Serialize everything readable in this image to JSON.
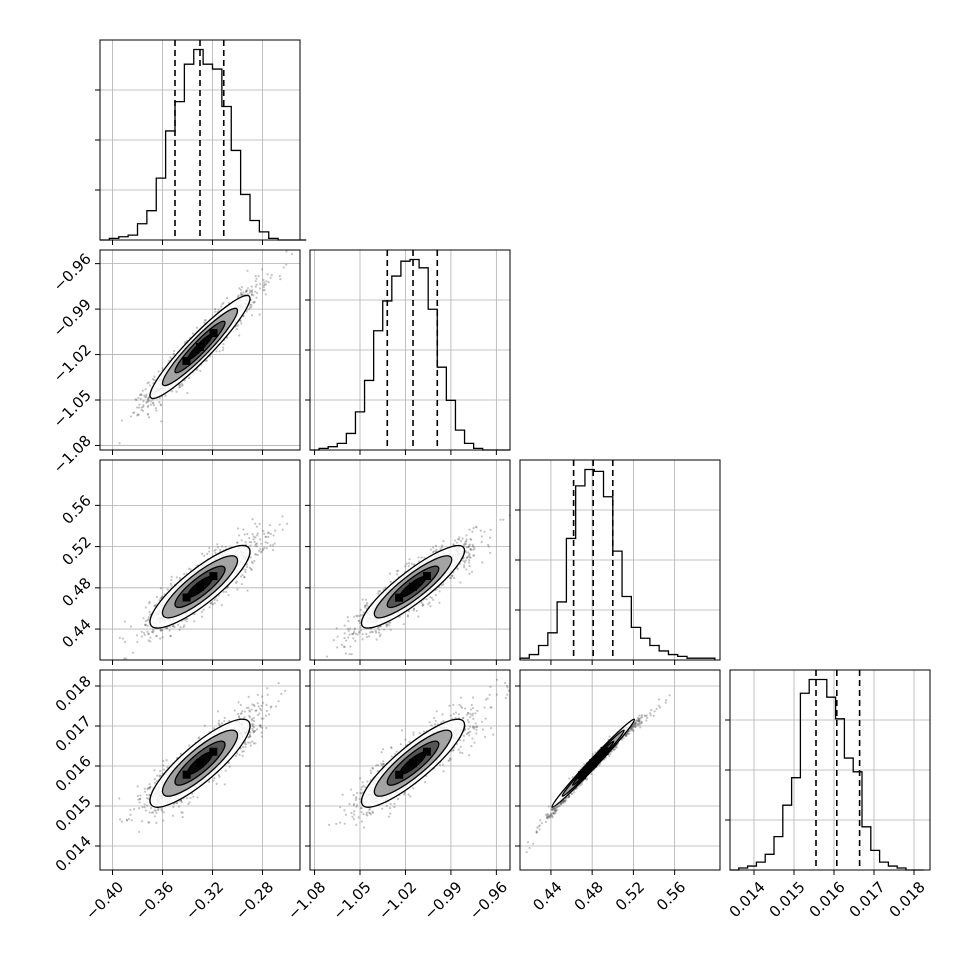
{
  "chart_data": {
    "type": "corner",
    "parameters": [
      {
        "range": [
          -0.41,
          -0.25
        ],
        "ticks": [
          -0.4,
          -0.36,
          -0.32,
          -0.28
        ],
        "tick_labels": [
          "−0.40",
          "−0.36",
          "−0.32",
          "−0.28"
        ],
        "quantiles": [
          -0.35,
          -0.33,
          -0.311
        ],
        "hist": {
          "bin_edges": [
            -0.41,
            -0.4025,
            -0.395,
            -0.3875,
            -0.38,
            -0.3725,
            -0.365,
            -0.3575,
            -0.35,
            -0.3425,
            -0.335,
            -0.3275,
            -0.32,
            -0.3125,
            -0.305,
            -0.2975,
            -0.29,
            -0.2825,
            -0.275,
            -0.2675,
            -0.26,
            -0.2525,
            -0.245
          ],
          "counts": [
            0,
            1,
            2,
            3,
            10,
            18,
            38,
            67,
            85,
            108,
            117,
            108,
            105,
            82,
            55,
            28,
            12,
            5,
            1,
            0,
            0,
            0
          ]
        }
      },
      {
        "range": [
          -1.083,
          -0.951
        ],
        "ticks": [
          -1.08,
          -1.05,
          -1.02,
          -0.99,
          -0.96
        ],
        "tick_labels": [
          "−1.08",
          "−1.05",
          "−1.02",
          "−0.99",
          "−0.96"
        ],
        "quantiles": [
          -1.032,
          -1.015,
          -0.999
        ],
        "hist": {
          "bin_edges": [
            -1.083,
            -1.077,
            -1.071,
            -1.065,
            -1.059,
            -1.053,
            -1.047,
            -1.041,
            -1.035,
            -1.029,
            -1.023,
            -1.017,
            -1.011,
            -1.005,
            -0.999,
            -0.993,
            -0.987,
            -0.981,
            -0.975,
            -0.969,
            -0.963,
            -0.957,
            -0.951
          ],
          "counts": [
            0,
            1,
            2,
            4,
            10,
            23,
            42,
            72,
            90,
            105,
            114,
            115,
            110,
            85,
            50,
            30,
            12,
            4,
            1,
            0,
            0,
            0
          ]
        }
      },
      {
        "range": [
          0.41,
          0.604
        ],
        "ticks": [
          0.44,
          0.48,
          0.52,
          0.56
        ],
        "tick_labels": [
          "0.44",
          "0.48",
          "0.52",
          "0.56"
        ],
        "quantiles": [
          0.462,
          0.481,
          0.5
        ],
        "hist": {
          "bin_edges": [
            0.41,
            0.419,
            0.428,
            0.437,
            0.446,
            0.455,
            0.464,
            0.473,
            0.482,
            0.491,
            0.5,
            0.509,
            0.518,
            0.527,
            0.536,
            0.545,
            0.554,
            0.563,
            0.572,
            0.581,
            0.59,
            0.599
          ],
          "counts": [
            1,
            3,
            8,
            15,
            32,
            67,
            96,
            105,
            104,
            90,
            60,
            35,
            18,
            12,
            8,
            5,
            3,
            2,
            1,
            1,
            1
          ]
        }
      },
      {
        "range": [
          0.0134,
          0.0184
        ],
        "ticks": [
          0.014,
          0.015,
          0.016,
          0.017,
          0.018
        ],
        "tick_labels": [
          "0.014",
          "0.015",
          "0.016",
          "0.017",
          "0.018"
        ],
        "quantiles": [
          0.01555,
          0.01607,
          0.01664
        ],
        "hist": {
          "bin_edges": [
            0.0134,
            0.01362,
            0.01384,
            0.01406,
            0.01428,
            0.0145,
            0.01472,
            0.01494,
            0.01516,
            0.01538,
            0.0156,
            0.01582,
            0.01604,
            0.01626,
            0.01648,
            0.0167,
            0.01692,
            0.01714,
            0.01736,
            0.01758,
            0.0178,
            0.01802,
            0.01824
          ],
          "counts": [
            0,
            1,
            2,
            4,
            8,
            17,
            33,
            47,
            90,
            97,
            97,
            88,
            77,
            57,
            50,
            22,
            10,
            4,
            2,
            1,
            0,
            0
          ]
        }
      }
    ],
    "pair_densities": [
      {
        "row": 1,
        "col": 0,
        "means": [
          -0.33,
          -1.015
        ],
        "sds": [
          0.02,
          0.017
        ],
        "corr": 0.94
      },
      {
        "row": 2,
        "col": 0,
        "means": [
          -0.33,
          0.481
        ],
        "sds": [
          0.02,
          0.02
        ],
        "corr": 0.85
      },
      {
        "row": 2,
        "col": 1,
        "means": [
          -1.015,
          0.481
        ],
        "sds": [
          0.017,
          0.02
        ],
        "corr": 0.88
      },
      {
        "row": 3,
        "col": 0,
        "means": [
          -0.33,
          0.01607
        ],
        "sds": [
          0.02,
          0.00055
        ],
        "corr": 0.85
      },
      {
        "row": 3,
        "col": 1,
        "means": [
          -1.015,
          0.01607
        ],
        "sds": [
          0.017,
          0.00055
        ],
        "corr": 0.87
      },
      {
        "row": 3,
        "col": 2,
        "means": [
          0.481,
          0.01607
        ],
        "sds": [
          0.02,
          0.00055
        ],
        "corr": 0.99
      }
    ],
    "contour_levels_sigma": [
      0.5,
      1.0,
      1.5,
      2.0
    ],
    "grid": true,
    "colors": {
      "line": "#000000",
      "points": "#555555",
      "grid": "#b0b0b0"
    }
  }
}
